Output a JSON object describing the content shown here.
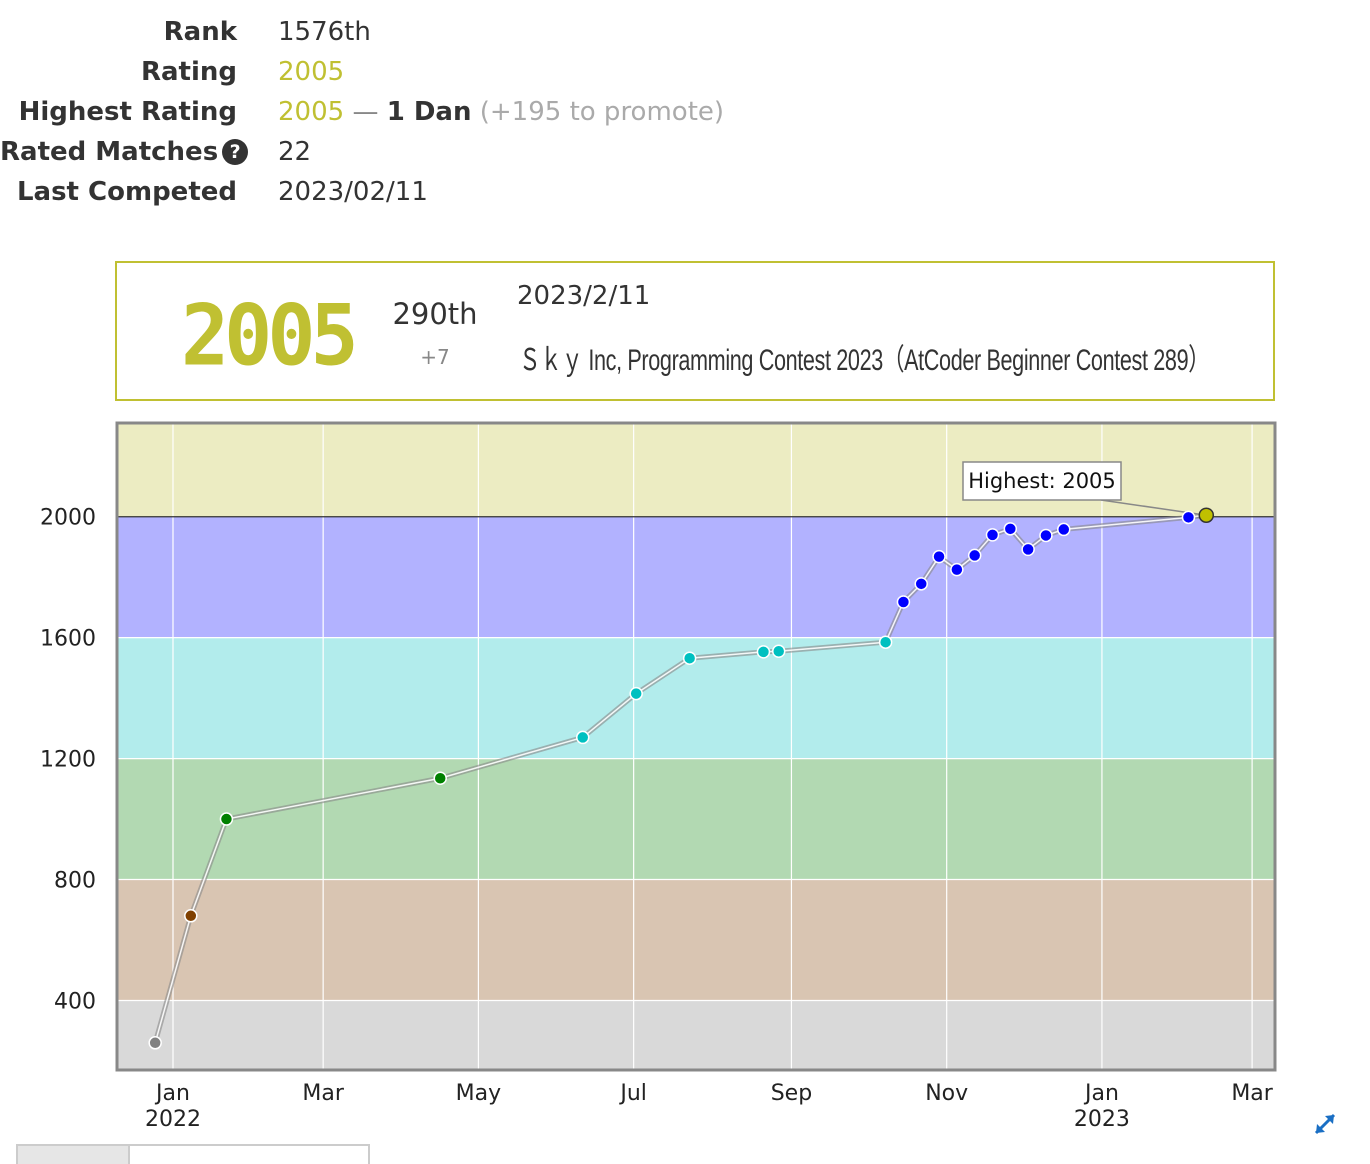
{
  "profile": {
    "rank_label": "Rank",
    "rank_value": "1576th",
    "rating_label": "Rating",
    "rating_value": "2005",
    "highest_label": "Highest Rating",
    "highest_value": "2005",
    "highest_sep": "—",
    "highest_dan": "1 Dan",
    "highest_promote": "(+195 to promote)",
    "matches_label": "Rated Matches",
    "matches_help_icon": "question-circle-icon",
    "matches_value": "22",
    "last_label": "Last Competed",
    "last_value": "2023/02/11"
  },
  "contest_card": {
    "rating": "2005",
    "place": "290th",
    "delta": "+7",
    "date": "2023/2/11",
    "name": "Ｓｋｙ Inc, Programming Contest 2023（AtCoder Beginner Contest 289）"
  },
  "colors": {
    "gold": "#c0c032",
    "line": "#aaaaaa",
    "bands": [
      {
        "from": 0,
        "to": 400,
        "fill": "#d9d9d9",
        "dot": "#808080"
      },
      {
        "from": 400,
        "to": 800,
        "fill": "#d9c5b2",
        "dot": "#804000"
      },
      {
        "from": 800,
        "to": 1200,
        "fill": "#b2d9b2",
        "dot": "#008000"
      },
      {
        "from": 1200,
        "to": 1600,
        "fill": "#b2ecec",
        "dot": "#00c0c0"
      },
      {
        "from": 1600,
        "to": 2000,
        "fill": "#b2b2ff",
        "dot": "#0000ff"
      },
      {
        "from": 2000,
        "to": 2400,
        "fill": "#ececc2",
        "dot": "#c0c000"
      }
    ]
  },
  "chart_data": {
    "type": "line",
    "ylim": [
      170,
      2310
    ],
    "yticks": [
      400,
      800,
      1200,
      1600,
      2000
    ],
    "xlim": [
      "2021-12-10",
      "2023-03-10"
    ],
    "xticks": [
      {
        "date": "2022-01-01",
        "label": "Jan",
        "year": "2022"
      },
      {
        "date": "2022-03-01",
        "label": "Mar",
        "year": ""
      },
      {
        "date": "2022-05-01",
        "label": "May",
        "year": ""
      },
      {
        "date": "2022-07-01",
        "label": "Jul",
        "year": ""
      },
      {
        "date": "2022-09-01",
        "label": "Sep",
        "year": ""
      },
      {
        "date": "2022-11-01",
        "label": "Nov",
        "year": ""
      },
      {
        "date": "2023-01-01",
        "label": "Jan",
        "year": "2023"
      },
      {
        "date": "2023-03-01",
        "label": "Mar",
        "year": ""
      }
    ],
    "points": [
      {
        "date": "2021-12-25",
        "rating": 260
      },
      {
        "date": "2022-01-08",
        "rating": 680
      },
      {
        "date": "2022-01-22",
        "rating": 1000
      },
      {
        "date": "2022-04-16",
        "rating": 1135
      },
      {
        "date": "2022-06-11",
        "rating": 1270
      },
      {
        "date": "2022-07-02",
        "rating": 1415
      },
      {
        "date": "2022-07-23",
        "rating": 1532
      },
      {
        "date": "2022-08-21",
        "rating": 1553
      },
      {
        "date": "2022-08-27",
        "rating": 1555
      },
      {
        "date": "2022-10-08",
        "rating": 1585
      },
      {
        "date": "2022-10-15",
        "rating": 1718
      },
      {
        "date": "2022-10-22",
        "rating": 1778
      },
      {
        "date": "2022-10-29",
        "rating": 1868
      },
      {
        "date": "2022-11-05",
        "rating": 1825
      },
      {
        "date": "2022-11-12",
        "rating": 1872
      },
      {
        "date": "2022-11-19",
        "rating": 1940
      },
      {
        "date": "2022-11-26",
        "rating": 1960
      },
      {
        "date": "2022-12-03",
        "rating": 1892
      },
      {
        "date": "2022-12-10",
        "rating": 1938
      },
      {
        "date": "2022-12-17",
        "rating": 1958
      },
      {
        "date": "2023-02-04",
        "rating": 1998
      },
      {
        "date": "2023-02-11",
        "rating": 2005
      }
    ],
    "annotation": "Highest: 2005",
    "grid": true,
    "expand_icon": "expand-arrows-icon"
  }
}
